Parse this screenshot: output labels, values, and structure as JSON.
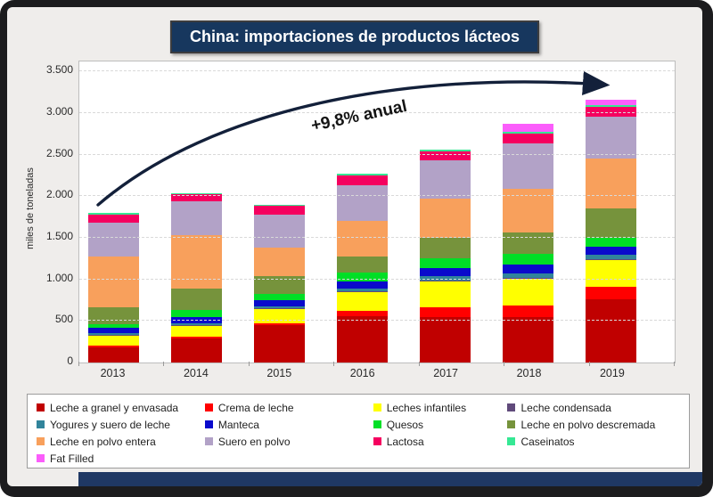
{
  "title": "China: importaciones de productos lácteos",
  "annotation": {
    "text": "+9,8% anual"
  },
  "y_axis": {
    "label": "miles de toneladas",
    "ticks": [
      "0",
      "500",
      "1.000",
      "1.500",
      "2.000",
      "2.500",
      "3.000",
      "3.500"
    ],
    "tick_values": [
      0,
      500,
      1000,
      1500,
      2000,
      2500,
      3000,
      3500
    ]
  },
  "colors": {
    "frame": "#1c1c1e",
    "card_background": "#efedeb",
    "title_background": "#17375e",
    "footer_bar": "#1f3864",
    "plot_background": "#ffffff",
    "gridline": "#d9d9d9",
    "arrow": "#13203a"
  },
  "chart_data": {
    "type": "bar",
    "stacked": true,
    "title": "China: importaciones de productos lácteos",
    "xlabel": "",
    "ylabel": "miles de toneladas",
    "ylim": [
      0,
      3500
    ],
    "ytick_interval": 500,
    "grid": "horizontal-dashed",
    "legend_position": "bottom",
    "annotation": "+9,8% anual",
    "categories": [
      "2013",
      "2014",
      "2015",
      "2016",
      "2017",
      "2018",
      "2019"
    ],
    "series": [
      {
        "name": "Leche a granel y envasada",
        "color": "#c00000",
        "values": [
          180,
          290,
          450,
          555,
          545,
          550,
          755
        ]
      },
      {
        "name": "Crema de leche",
        "color": "#ff0000",
        "values": [
          20,
          25,
          20,
          70,
          115,
          140,
          155
        ]
      },
      {
        "name": "Leches infantiles",
        "color": "#ffff00",
        "values": [
          125,
          120,
          170,
          225,
          320,
          320,
          320
        ]
      },
      {
        "name": "Leche condensada",
        "color": "#604a7b",
        "values": [
          10,
          10,
          10,
          10,
          10,
          10,
          10
        ]
      },
      {
        "name": "Yogures y suero de leche",
        "color": "#31849b",
        "values": [
          20,
          25,
          25,
          30,
          50,
          55,
          55
        ]
      },
      {
        "name": "Manteca",
        "color": "#0a0acc",
        "values": [
          60,
          80,
          70,
          85,
          95,
          100,
          100
        ]
      },
      {
        "name": "Quesos",
        "color": "#00df26",
        "values": [
          50,
          80,
          85,
          110,
          120,
          130,
          105
        ]
      },
      {
        "name": "Leche en polvo descremada",
        "color": "#76933c",
        "values": [
          195,
          255,
          205,
          185,
          250,
          260,
          350
        ]
      },
      {
        "name": "Leche en polvo entera",
        "color": "#f8a05c",
        "values": [
          620,
          645,
          350,
          435,
          465,
          520,
          600
        ]
      },
      {
        "name": "Suero en polvo",
        "color": "#b2a2c7",
        "values": [
          405,
          405,
          390,
          425,
          460,
          545,
          510
        ]
      },
      {
        "name": "Lactosa",
        "color": "#f5005f",
        "values": [
          95,
          90,
          110,
          120,
          105,
          120,
          115
        ]
      },
      {
        "name": "Caseinatos",
        "color": "#35e894",
        "values": [
          15,
          15,
          15,
          25,
          30,
          20,
          20
        ]
      },
      {
        "name": "Fat Filled",
        "color": "#fb5dfb",
        "values": [
          0,
          0,
          0,
          0,
          0,
          100,
          70
        ]
      }
    ]
  }
}
